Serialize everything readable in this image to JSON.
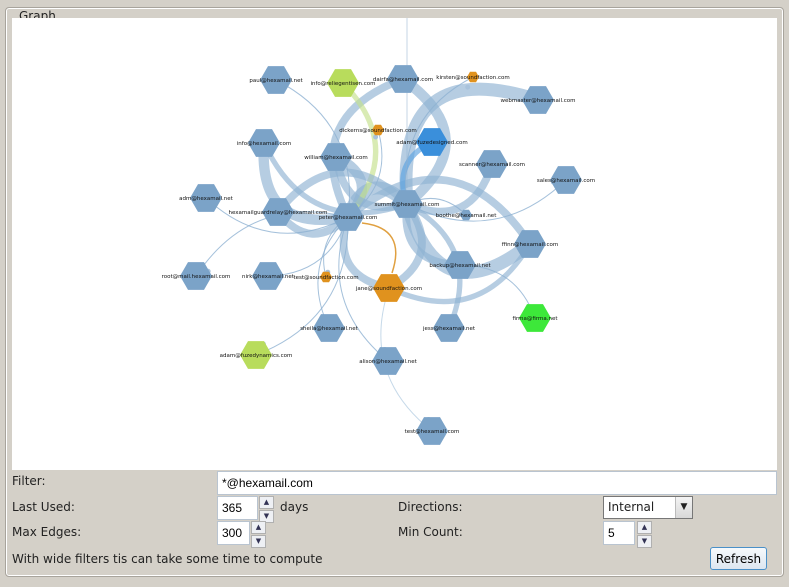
{
  "panel": {
    "title": "Graph"
  },
  "colors": {
    "internal": "#7ba3c8",
    "edge": "#8fb2d2",
    "soundfaction": "#e0921e",
    "external_light": "#b8dc5c",
    "fuze": "#3a8fdb",
    "firma": "#3de83a"
  },
  "graph": {
    "nodes": [
      {
        "id": "paul",
        "label": "paul@hexamail.net",
        "color": "internal",
        "size": "large"
      },
      {
        "id": "reli",
        "label": "info@reliegentisen.com",
        "color": "external_light",
        "size": "large"
      },
      {
        "id": "dairfa",
        "label": "dairfa@hexamail.com",
        "color": "internal",
        "size": "large"
      },
      {
        "id": "kirsten",
        "label": "kirsten@soundfaction.com",
        "color": "soundfaction",
        "size": "small"
      },
      {
        "id": "webmaster",
        "label": "webmaster@hexamail.com",
        "color": "internal",
        "size": "large"
      },
      {
        "id": "dickerns",
        "label": "dickerns@soundfaction.com",
        "color": "soundfaction",
        "size": "small"
      },
      {
        "id": "info",
        "label": "info@hexamail.com",
        "color": "internal",
        "size": "large"
      },
      {
        "id": "adamfuze",
        "label": "adam@fuzedesigned.com",
        "color": "fuze",
        "size": "large"
      },
      {
        "id": "william",
        "label": "william@hexamail.com",
        "color": "internal",
        "size": "large"
      },
      {
        "id": "scanner",
        "label": "scanner@hexamail.com",
        "color": "internal",
        "size": "large"
      },
      {
        "id": "sales",
        "label": "sales@hexamail.com",
        "color": "internal",
        "size": "large"
      },
      {
        "id": "adm",
        "label": "adm@hexamail.net",
        "color": "internal",
        "size": "large"
      },
      {
        "id": "guard",
        "label": "hexamailguardrelay@hexamail.com",
        "color": "internal",
        "size": "large"
      },
      {
        "id": "peter",
        "label": "peter@hexamail.com",
        "color": "internal",
        "size": "large"
      },
      {
        "id": "summit",
        "label": "summit@hexamail.com",
        "color": "internal",
        "size": "large"
      },
      {
        "id": "booth",
        "label": "boothe@hexamail.net",
        "color": "internal",
        "size": "small"
      },
      {
        "id": "ffinn",
        "label": "ffinn@hexamail.com",
        "color": "internal",
        "size": "large"
      },
      {
        "id": "root",
        "label": "root@mail.hexamail.com",
        "color": "internal",
        "size": "large"
      },
      {
        "id": "nirk",
        "label": "nirk@hexamail.net",
        "color": "internal",
        "size": "large"
      },
      {
        "id": "testsf",
        "label": "test@soundfaction.com",
        "color": "soundfaction",
        "size": "small"
      },
      {
        "id": "jane",
        "label": "jane@soundfaction.com",
        "color": "soundfaction",
        "size": "large"
      },
      {
        "id": "backup",
        "label": "backup@hexamail.net",
        "color": "internal",
        "size": "large"
      },
      {
        "id": "firma",
        "label": "firma@firma.net",
        "color": "firma",
        "size": "large"
      },
      {
        "id": "sheila",
        "label": "sheila@hexamail.net",
        "color": "internal",
        "size": "large"
      },
      {
        "id": "jess",
        "label": "jess@hexamail.net",
        "color": "internal",
        "size": "large"
      },
      {
        "id": "alison",
        "label": "alison@hexamail.net",
        "color": "internal",
        "size": "large"
      },
      {
        "id": "adamdyn",
        "label": "adam@fuzedynamics.com",
        "color": "external_light",
        "size": "large"
      },
      {
        "id": "test",
        "label": "test@hexamail.com",
        "color": "internal",
        "size": "large"
      }
    ],
    "edges": [
      [
        "peter",
        "summit",
        5
      ],
      [
        "peter",
        "william",
        4
      ],
      [
        "summit",
        "webmaster",
        5
      ],
      [
        "summit",
        "ffinn",
        5
      ],
      [
        "peter",
        "info",
        4
      ],
      [
        "summit",
        "scanner",
        3
      ],
      [
        "peter",
        "dairfa",
        3
      ],
      [
        "summit",
        "dairfa",
        4
      ],
      [
        "peter",
        "guard",
        3
      ],
      [
        "summit",
        "backup",
        3
      ],
      [
        "peter",
        "ffinn",
        3
      ],
      [
        "peter",
        "jane",
        3
      ],
      [
        "summit",
        "jane",
        3
      ],
      [
        "peter",
        "reli",
        2
      ],
      [
        "summit",
        "adamfuze",
        2
      ],
      [
        "peter",
        "paul",
        1
      ],
      [
        "peter",
        "adm",
        1
      ],
      [
        "peter",
        "root",
        1
      ],
      [
        "peter",
        "nirk",
        1
      ],
      [
        "peter",
        "sheila",
        1
      ],
      [
        "summit",
        "jess",
        2
      ],
      [
        "peter",
        "alison",
        1
      ],
      [
        "peter",
        "adamdyn",
        1
      ],
      [
        "jane",
        "test",
        1
      ],
      [
        "backup",
        "firma",
        1
      ],
      [
        "summit",
        "sales",
        1
      ],
      [
        "summit",
        "booth",
        1
      ],
      [
        "peter",
        "testsf",
        1
      ],
      [
        "summit",
        "kirsten",
        1
      ],
      [
        "peter",
        "dickerns",
        1
      ],
      [
        "ffinn",
        "jane",
        2
      ],
      [
        "william",
        "summit",
        3
      ],
      [
        "guard",
        "summit",
        3
      ],
      [
        "info",
        "summit",
        2
      ]
    ]
  },
  "form": {
    "filter_label": "Filter:",
    "filter_value": "*@hexamail.com",
    "last_used_label": "Last Used:",
    "last_used_value": "365",
    "days_label": "days",
    "directions_label": "Directions:",
    "directions_value": "Internal",
    "max_edges_label": "Max Edges:",
    "max_edges_value": "300",
    "min_count_label": "Min Count:",
    "min_count_value": "5",
    "note": "With wide filters tis can take some time to compute",
    "refresh_label": "Refresh"
  }
}
